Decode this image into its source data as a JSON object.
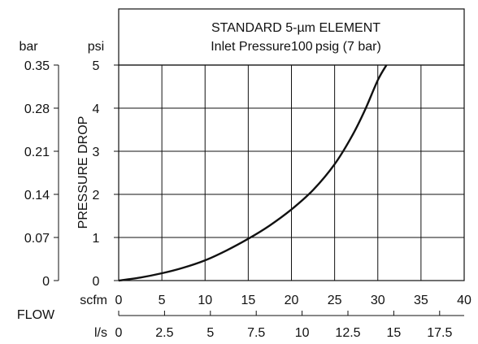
{
  "chart_data": {
    "type": "line",
    "title": "STANDARD 5-µm ELEMENT",
    "subtitle": "Inlet Pressure100 psig (7 bar)",
    "ylabel": "PRESSURE DROP",
    "xlabel": "FLOW",
    "ylim": [
      0,
      5
    ],
    "xlim": [
      0,
      40
    ],
    "grid": true,
    "y_psi": {
      "unit": "psi",
      "ticks": [
        "0",
        "1",
        "2",
        "3",
        "4",
        "5"
      ]
    },
    "y_bar": {
      "unit": "bar",
      "ticks": [
        "0",
        "0.07",
        "0.14",
        "0.21",
        "0.28",
        "0.35"
      ]
    },
    "x_scfm": {
      "unit": "scfm",
      "ticks": [
        "0",
        "5",
        "10",
        "15",
        "20",
        "25",
        "30",
        "35",
        "40"
      ]
    },
    "x_ls": {
      "unit": "l/s",
      "ticks": [
        "0",
        "2.5",
        "5",
        "7.5",
        "10",
        "12.5",
        "15",
        "17.5"
      ]
    },
    "series": [
      {
        "x": [
          0,
          2.5,
          5,
          7.5,
          10,
          12.5,
          15,
          17.5,
          20,
          22.5,
          25,
          27,
          28.5,
          30,
          31
        ],
        "y": [
          0,
          0.07,
          0.17,
          0.3,
          0.47,
          0.7,
          0.97,
          1.28,
          1.65,
          2.1,
          2.7,
          3.35,
          3.95,
          4.65,
          5.0
        ]
      }
    ]
  }
}
